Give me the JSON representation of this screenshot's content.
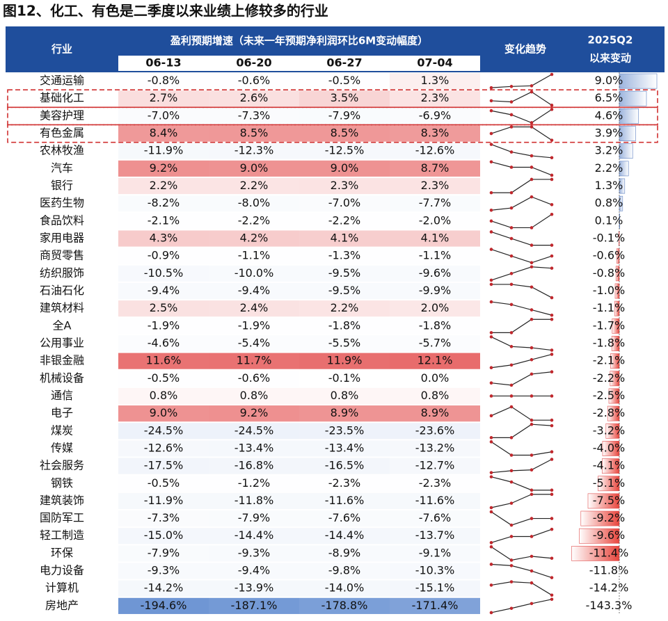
{
  "title": "图12、化工、有色是二季度以来业绩上修较多的行业",
  "table": {
    "header": {
      "industry": "行业",
      "group": "盈利预期增速（未来一年预期净利润环比6M变动幅度）",
      "dates": [
        "06-13",
        "06-20",
        "06-27",
        "07-04"
      ],
      "trend": "变化趋势",
      "change": [
        "2025Q2",
        "以来变动"
      ]
    },
    "rows": [
      [
        "交通运输",
        "-0.8%",
        "-0.6%",
        "-0.5%",
        "1.3%",
        "9.0%"
      ],
      [
        "基础化工",
        "2.7%",
        "2.6%",
        "3.5%",
        "2.3%",
        "6.5%"
      ],
      [
        "美容护理",
        "-7.0%",
        "-7.3%",
        "-7.9%",
        "-6.9%",
        "4.6%"
      ],
      [
        "有色金属",
        "8.4%",
        "8.5%",
        "8.5%",
        "8.3%",
        "3.9%"
      ],
      [
        "农林牧渔",
        "-11.9%",
        "-12.3%",
        "-12.5%",
        "-12.6%",
        "3.2%"
      ],
      [
        "汽车",
        "9.2%",
        "9.0%",
        "9.0%",
        "8.7%",
        "2.2%"
      ],
      [
        "银行",
        "2.2%",
        "2.2%",
        "2.3%",
        "2.3%",
        "1.3%"
      ],
      [
        "医药生物",
        "-8.2%",
        "-8.0%",
        "-7.0%",
        "-7.7%",
        "0.8%"
      ],
      [
        "食品饮料",
        "-2.1%",
        "-2.2%",
        "-2.2%",
        "-2.0%",
        "0.1%"
      ],
      [
        "家用电器",
        "4.3%",
        "4.2%",
        "4.1%",
        "4.1%",
        "-0.1%"
      ],
      [
        "商贸零售",
        "-0.9%",
        "-1.1%",
        "-1.3%",
        "-1.1%",
        "-0.6%"
      ],
      [
        "纺织服饰",
        "-10.5%",
        "-10.0%",
        "-9.5%",
        "-9.6%",
        "-0.8%"
      ],
      [
        "石油石化",
        "-9.4%",
        "-9.4%",
        "-9.5%",
        "-9.9%",
        "-1.0%"
      ],
      [
        "建筑材料",
        "2.5%",
        "2.4%",
        "2.2%",
        "2.0%",
        "-1.1%"
      ],
      [
        "全A",
        "-1.9%",
        "-1.9%",
        "-1.8%",
        "-1.8%",
        "-1.7%"
      ],
      [
        "公用事业",
        "-4.6%",
        "-5.4%",
        "-5.5%",
        "-5.7%",
        "-1.8%"
      ],
      [
        "非银金融",
        "11.6%",
        "11.7%",
        "11.9%",
        "12.1%",
        "-2.1%"
      ],
      [
        "机械设备",
        "-0.5%",
        "-0.6%",
        "-0.1%",
        "0.0%",
        "-2.2%"
      ],
      [
        "通信",
        "0.8%",
        "0.8%",
        "0.8%",
        "0.8%",
        "-2.5%"
      ],
      [
        "电子",
        "9.0%",
        "9.2%",
        "8.9%",
        "8.9%",
        "-2.8%"
      ],
      [
        "煤炭",
        "-24.5%",
        "-24.5%",
        "-23.5%",
        "-23.6%",
        "-3.2%"
      ],
      [
        "传媒",
        "-12.6%",
        "-13.4%",
        "-13.4%",
        "-13.2%",
        "-4.0%"
      ],
      [
        "社会服务",
        "-17.5%",
        "-16.8%",
        "-16.5%",
        "-12.7%",
        "-4.1%"
      ],
      [
        "钢铁",
        "-0.5%",
        "-1.2%",
        "-2.3%",
        "-2.3%",
        "-5.1%"
      ],
      [
        "建筑装饰",
        "-11.9%",
        "-11.8%",
        "-11.6%",
        "-11.6%",
        "-7.5%"
      ],
      [
        "国防军工",
        "-7.3%",
        "-7.9%",
        "-7.6%",
        "-7.6%",
        "-9.2%"
      ],
      [
        "轻工制造",
        "-15.0%",
        "-14.4%",
        "-14.4%",
        "-13.7%",
        "-9.6%"
      ],
      [
        "环保",
        "-7.9%",
        "-9.3%",
        "-8.9%",
        "-9.1%",
        "-11.4%"
      ],
      [
        "电力设备",
        "-9.3%",
        "-9.4%",
        "-9.8%",
        "-10.3%",
        "-11.8%"
      ],
      [
        "计算机",
        "-14.2%",
        "-13.9%",
        "-14.0%",
        "-15.1%",
        "-14.2%"
      ],
      [
        "房地产",
        "-194.6%",
        "-187.1%",
        "-178.8%",
        "-171.4%",
        "-143.3%"
      ]
    ]
  }
}
